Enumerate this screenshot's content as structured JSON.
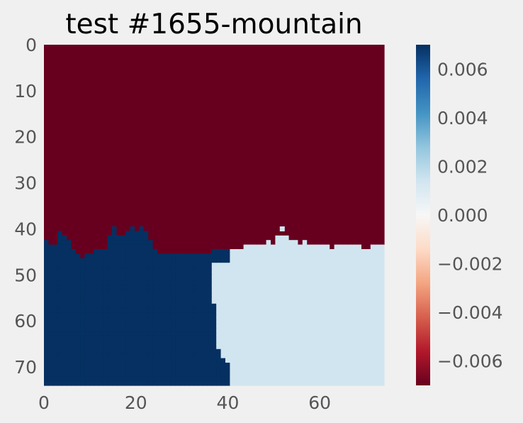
{
  "chart_data": {
    "type": "heatmap",
    "title": "test #1655-mountain",
    "xlabel": "",
    "ylabel": "",
    "grid_size": [
      75,
      75
    ],
    "xlim": [
      0,
      74
    ],
    "ylim": [
      74,
      0
    ],
    "x_ticks": [
      "0",
      "20",
      "40",
      "60"
    ],
    "y_ticks": [
      "0",
      "10",
      "20",
      "30",
      "40",
      "50",
      "60",
      "70"
    ],
    "colormap": "RdBu",
    "colorbar": {
      "range": [
        -0.007,
        0.007
      ],
      "ticks": [
        "0.006",
        "0.004",
        "0.002",
        "0.000",
        "−0.002",
        "−0.004",
        "−0.006"
      ],
      "tick_values": [
        0.006,
        0.004,
        0.002,
        0.0,
        -0.002,
        -0.004,
        -0.006
      ]
    },
    "regions": [
      {
        "name": "upper region",
        "value": -0.007,
        "color": "#67001f"
      },
      {
        "name": "lower-left region",
        "value": 0.007,
        "color": "#053061"
      },
      {
        "name": "lower-right region",
        "value": 0.0015,
        "color": "#d1e5f0"
      }
    ],
    "boundary_upper": [
      43,
      44,
      44,
      41,
      42,
      43,
      45,
      46,
      47,
      46,
      46,
      45,
      45,
      45,
      42,
      40,
      42,
      42,
      41,
      40,
      41,
      40,
      41,
      43,
      45,
      46,
      46,
      46,
      46,
      46,
      46,
      46,
      46,
      46,
      46,
      46,
      46,
      45,
      45,
      45,
      45,
      45,
      45,
      45,
      44,
      44,
      44,
      44,
      44,
      43,
      44,
      42,
      42,
      42,
      43,
      43,
      44,
      43,
      44,
      44,
      44,
      44,
      44,
      45,
      44,
      44,
      44,
      44,
      44,
      44,
      45,
      45,
      44,
      44,
      44
    ],
    "boundary_split": [
      40,
      40,
      40,
      40,
      40,
      40,
      40,
      40,
      40,
      40,
      40,
      40,
      40,
      40,
      40,
      40,
      40,
      40,
      40,
      40,
      40,
      40,
      40,
      40,
      40,
      40,
      40,
      40,
      40,
      40,
      40,
      40,
      40,
      40,
      40,
      40,
      40,
      40,
      40,
      40,
      40,
      40,
      40,
      40,
      40,
      40,
      40,
      40,
      36,
      36,
      36,
      36,
      36,
      36,
      36,
      36,
      36,
      37,
      37,
      37,
      37,
      37,
      37,
      37,
      37,
      37,
      37,
      38,
      38,
      39,
      40,
      40,
      40,
      40,
      40
    ],
    "hole": {
      "row": 40,
      "col": 52
    }
  }
}
